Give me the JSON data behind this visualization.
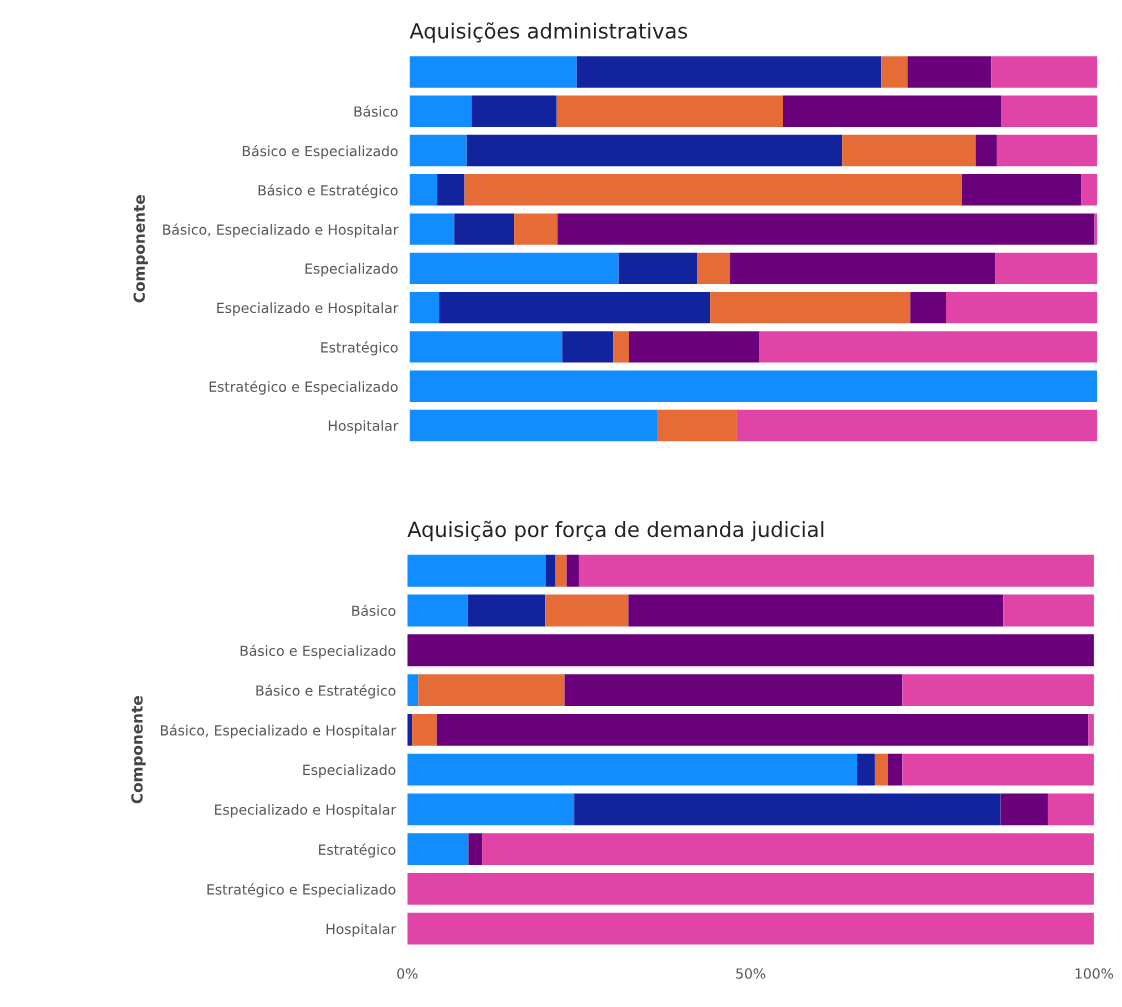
{
  "chart_data": [
    {
      "type": "bar",
      "orientation": "horizontal",
      "stacked": true,
      "title": "Aquisições administrativas",
      "ylabel": "Componente",
      "categories": [
        null,
        "Básico",
        "Básico e Especializado",
        "Básico e Estratégico",
        "Básico, Especializado e Hospitalar",
        "Especializado",
        "Especializado e Hospitalar",
        "Estratégico",
        "Estratégico e Especializado",
        "Hospitalar"
      ],
      "series": [
        {
          "color": "#118dff",
          "values": [
            24.3,
            9.0,
            8.3,
            4.0,
            6.5,
            30.4,
            4.3,
            22.2,
            100,
            36.1
          ]
        },
        {
          "color": "#12239e",
          "values": [
            44.3,
            12.4,
            54.6,
            4.0,
            8.7,
            11.4,
            39.4,
            7.4,
            0,
            0
          ]
        },
        {
          "color": "#e66c37",
          "values": [
            3.8,
            32.9,
            19.4,
            72.3,
            6.3,
            4.8,
            29.1,
            2.3,
            0,
            11.5
          ]
        },
        {
          "color": "#6b007b",
          "values": [
            12.2,
            31.7,
            3.1,
            17.4,
            78.1,
            38.6,
            5.2,
            19.0,
            0,
            0
          ]
        },
        {
          "color": "#e044a7",
          "values": [
            15.4,
            14.0,
            14.6,
            2.3,
            0.4,
            14.8,
            22.0,
            49.1,
            0,
            52.4
          ]
        }
      ],
      "xlim": [
        0,
        100
      ],
      "tick_labels": "y"
    },
    {
      "type": "bar",
      "orientation": "horizontal",
      "stacked": true,
      "title": "Aquisição por força de demanda judicial",
      "ylabel": "Componente",
      "categories": [
        null,
        "Básico",
        "Básico e Especializado",
        "Básico e Estratégico",
        "Básico, Especializado e Hospitalar",
        "Especializado",
        "Especializado e Hospitalar",
        "Estratégico",
        "Estratégico e Especializado",
        "Hospitalar"
      ],
      "series": [
        {
          "color": "#118dff",
          "values": [
            20.2,
            8.8,
            0,
            1.6,
            0,
            65.5,
            24.3,
            8.9,
            0,
            0
          ]
        },
        {
          "color": "#12239e",
          "values": [
            1.4,
            11.3,
            0,
            0,
            0.7,
            2.6,
            62.1,
            0,
            0,
            0
          ]
        },
        {
          "color": "#e66c37",
          "values": [
            1.6,
            12.1,
            0,
            21.3,
            3.6,
            1.9,
            0,
            0,
            0,
            0
          ]
        },
        {
          "color": "#6b007b",
          "values": [
            1.8,
            54.6,
            100,
            49.2,
            94.9,
            2.1,
            6.9,
            2.0,
            0,
            0
          ]
        },
        {
          "color": "#e044a7",
          "values": [
            75.0,
            13.2,
            0,
            27.9,
            0.8,
            27.9,
            6.7,
            89.1,
            100,
            100
          ]
        }
      ],
      "xlim": [
        0,
        100
      ],
      "xticks": [
        {
          "value": 0,
          "label": "0%"
        },
        {
          "value": 50,
          "label": "50%"
        },
        {
          "value": 100,
          "label": "100%"
        }
      ]
    }
  ]
}
